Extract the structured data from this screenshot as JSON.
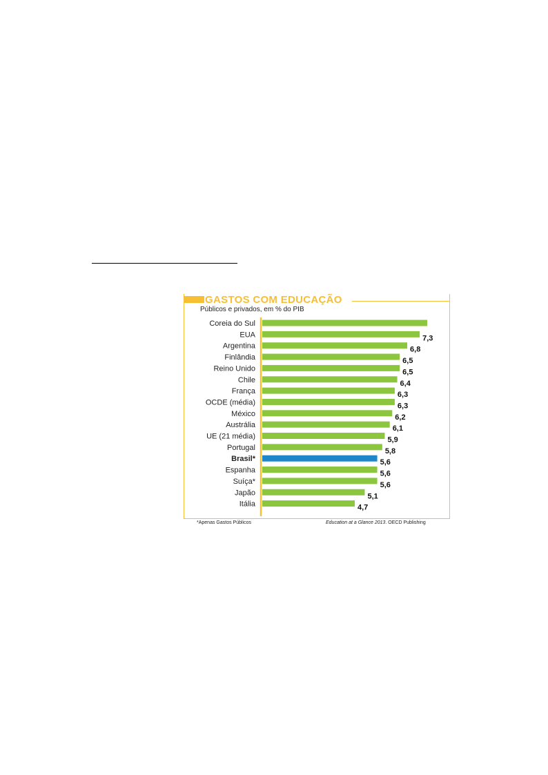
{
  "chart_data": {
    "type": "bar",
    "orientation": "horizontal",
    "title": "GASTOS COM EDUCAÇÃO",
    "subtitle": "Públicos e privados, em % do PIB",
    "categories": [
      "Coreia do Sul",
      "EUA",
      "Argentina",
      "Finlândia",
      "Reino Unido",
      "Chile",
      "França",
      "OCDE (média)",
      "México",
      "Austrália",
      "UE (21 média)",
      "Portugal",
      "Brasil*",
      "Espanha",
      "Suíça*",
      "Japão",
      "Itália"
    ],
    "values": [
      7.6,
      7.3,
      6.8,
      6.5,
      6.5,
      6.4,
      6.3,
      6.3,
      6.2,
      6.1,
      5.9,
      5.8,
      5.6,
      5.6,
      5.6,
      5.1,
      4.7
    ],
    "value_labels": [
      "",
      "7,3",
      "6,8",
      "6,5",
      "6,5",
      "6,4",
      "6,3",
      "6,3",
      "6,2",
      "6,1",
      "5,9",
      "5,8",
      "5,6",
      "5,6",
      "5,6",
      "5,1",
      "4,7"
    ],
    "highlight_category": "Brasil*",
    "colors": {
      "bar": "#8cc63f",
      "highlight": "#1f86c9",
      "accent": "#f7bf33"
    },
    "grid": false,
    "footnote": "*Apenas Gastos Públicos",
    "source_title": "Education at a Glance 2013",
    "source_rest": ". OECD Publishing"
  }
}
